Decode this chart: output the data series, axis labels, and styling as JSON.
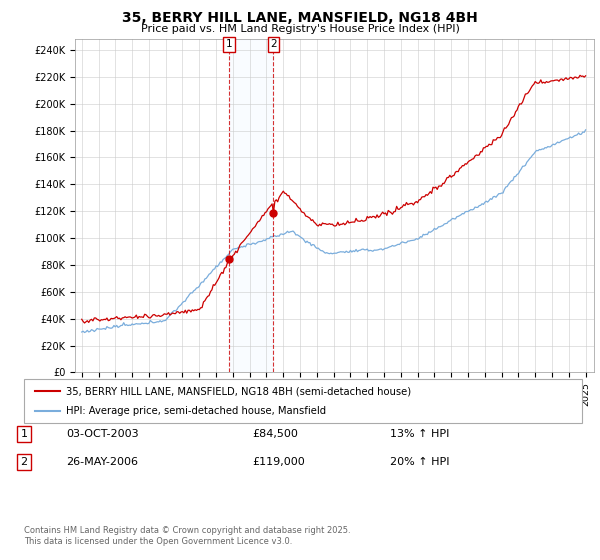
{
  "title_line1": "35, BERRY HILL LANE, MANSFIELD, NG18 4BH",
  "title_line2": "Price paid vs. HM Land Registry's House Price Index (HPI)",
  "ylim": [
    0,
    248000
  ],
  "yticks": [
    0,
    20000,
    40000,
    60000,
    80000,
    100000,
    120000,
    140000,
    160000,
    180000,
    200000,
    220000,
    240000
  ],
  "ytick_labels": [
    "£0",
    "£20K",
    "£40K",
    "£60K",
    "£80K",
    "£100K",
    "£120K",
    "£140K",
    "£160K",
    "£180K",
    "£200K",
    "£220K",
    "£240K"
  ],
  "legend_label_red": "35, BERRY HILL LANE, MANSFIELD, NG18 4BH (semi-detached house)",
  "legend_label_blue": "HPI: Average price, semi-detached house, Mansfield",
  "purchase1_date": "03-OCT-2003",
  "purchase1_price": "£84,500",
  "purchase1_hpi": "13% ↑ HPI",
  "purchase1_year": 2003.75,
  "purchase2_date": "26-MAY-2006",
  "purchase2_price": "£119,000",
  "purchase2_hpi": "20% ↑ HPI",
  "purchase2_year": 2006.4,
  "footer": "Contains HM Land Registry data © Crown copyright and database right 2025.\nThis data is licensed under the Open Government Licence v3.0.",
  "line_color_red": "#cc0000",
  "line_color_blue": "#7aaddc",
  "shade_color": "#ddeeff",
  "grid_color": "#cccccc",
  "annotation_box_color": "#cc0000"
}
